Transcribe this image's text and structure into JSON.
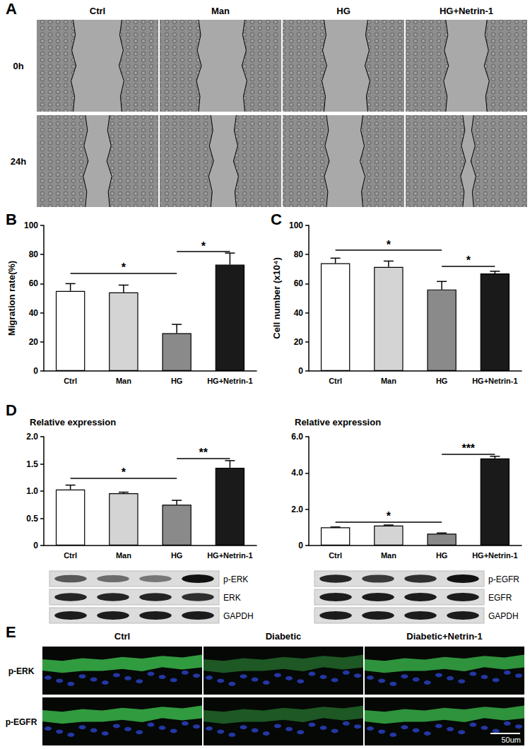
{
  "panels": {
    "A": {
      "panel": "A",
      "columns": [
        "Ctrl",
        "Man",
        "HG",
        "HG+Netrin-1"
      ],
      "rows": [
        "0h",
        "24h"
      ]
    },
    "E": {
      "panel": "E",
      "columns": [
        "Ctrl",
        "Diabetic",
        "Diabetic+Netrin-1"
      ],
      "rows": [
        "p-ERK",
        "p-EGFR"
      ],
      "scale_bar": "50um"
    }
  },
  "chart_data": [
    {
      "type": "bar",
      "panel": "B",
      "y_label": "Migration rate(%)",
      "categories": [
        "Ctrl",
        "Man",
        "HG",
        "HG+Netrin-1"
      ],
      "values": [
        55,
        54,
        26,
        73
      ],
      "errors": [
        5,
        5,
        6,
        8
      ],
      "colors": [
        "#ffffff",
        "#d4d4d4",
        "#8a8a8a",
        "#1a1a1a"
      ],
      "ylim": [
        0,
        100
      ],
      "yticks": [
        0,
        20,
        40,
        60,
        80,
        100
      ],
      "significance": [
        {
          "from": "Ctrl",
          "to": "HG",
          "y": 67,
          "label": "*"
        },
        {
          "from": "HG",
          "to": "HG+Netrin-1",
          "y": 82,
          "label": "*"
        }
      ]
    },
    {
      "type": "bar",
      "panel": "C",
      "y_label": "Cell number (x10⁴)",
      "categories": [
        "Ctrl",
        "Man",
        "HG",
        "HG+Netrin-1"
      ],
      "values": [
        74,
        71.5,
        56,
        67
      ],
      "errors": [
        3.5,
        4,
        5.5,
        1.5
      ],
      "colors": [
        "#ffffff",
        "#d4d4d4",
        "#8a8a8a",
        "#1a1a1a"
      ],
      "ylim": [
        0,
        100
      ],
      "yticks": [
        0,
        20,
        40,
        60,
        80,
        100
      ],
      "significance": [
        {
          "from": "Ctrl",
          "to": "HG",
          "y": 83,
          "label": "*"
        },
        {
          "from": "HG",
          "to": "HG+Netrin-1",
          "y": 72,
          "label": "*"
        }
      ]
    },
    {
      "type": "bar",
      "panel": "D",
      "y_label": "Relative expression",
      "categories": [
        "Ctrl",
        "Man",
        "HG",
        "HG+Netrin-1"
      ],
      "values": [
        1.03,
        0.96,
        0.75,
        1.43
      ],
      "errors": [
        0.08,
        0.02,
        0.08,
        0.13
      ],
      "colors": [
        "#ffffff",
        "#d4d4d4",
        "#8a8a8a",
        "#1a1a1a"
      ],
      "ylim": [
        0,
        2
      ],
      "yticks": [
        0,
        0.5,
        {
          "value": 1,
          "label": "1.0"
        },
        1.5,
        {
          "value": 2,
          "label": "2.0"
        }
      ],
      "significance": [
        {
          "from": "Ctrl",
          "to": "HG",
          "y": 1.24,
          "label": "*"
        },
        {
          "from": "HG",
          "to": "HG+Netrin-1",
          "y": 1.6,
          "label": "**"
        }
      ],
      "blots": [
        "p-ERK",
        "ERK",
        "GAPDH"
      ]
    },
    {
      "type": "bar",
      "y_label": "Relative expression",
      "categories": [
        "Ctrl",
        "Man",
        "HG",
        "HG+Netrin-1"
      ],
      "values": [
        1.0,
        1.1,
        0.65,
        4.8
      ],
      "errors": [
        0.02,
        0.03,
        0.04,
        0.12
      ],
      "colors": [
        "#ffffff",
        "#d4d4d4",
        "#8a8a8a",
        "#1a1a1a"
      ],
      "ylim": [
        0,
        6
      ],
      "yticks": [
        0,
        {
          "value": 2,
          "label": "2.0"
        },
        {
          "value": 4,
          "label": "4.0"
        },
        {
          "value": 6,
          "label": "6.0"
        }
      ],
      "significance": [
        {
          "from": "Ctrl",
          "to": "HG",
          "y": 1.29,
          "label": "*"
        },
        {
          "from": "HG",
          "to": "HG+Netrin-1",
          "y": 5.05,
          "label": "***"
        }
      ],
      "blots": [
        "p-EGFR",
        "EGFR",
        "GAPDH"
      ]
    }
  ]
}
